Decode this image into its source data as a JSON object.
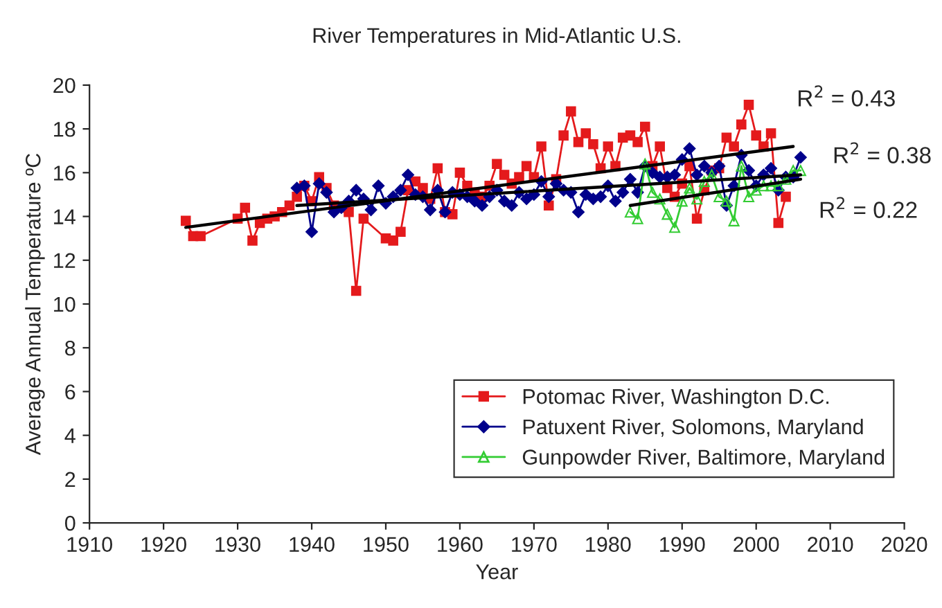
{
  "chart_data": {
    "type": "line",
    "title": "River Temperatures in Mid-Atlantic U.S.",
    "xlabel": "Year",
    "ylabel": "Average Annual Temperature ºC",
    "xlim": [
      1910,
      2020
    ],
    "xticks": [
      1910,
      1920,
      1930,
      1940,
      1950,
      1960,
      1970,
      1980,
      1990,
      2000,
      2010,
      2020
    ],
    "ylim": [
      0,
      20
    ],
    "yticks": [
      0,
      2,
      4,
      6,
      8,
      10,
      12,
      14,
      16,
      18,
      20
    ],
    "grid": false,
    "legend": "lower right",
    "series": [
      {
        "name": "Potomac River, Washington D.C.",
        "color": "#e41a1c",
        "marker": "square",
        "x": [
          1923,
          1924,
          1925,
          1930,
          1931,
          1932,
          1933,
          1934,
          1935,
          1936,
          1937,
          1938,
          1939,
          1940,
          1941,
          1942,
          1943,
          1944,
          1945,
          1946,
          1947,
          1950,
          1951,
          1952,
          1953,
          1954,
          1955,
          1956,
          1957,
          1958,
          1959,
          1960,
          1961,
          1962,
          1963,
          1964,
          1965,
          1966,
          1967,
          1968,
          1969,
          1970,
          1971,
          1972,
          1973,
          1974,
          1975,
          1976,
          1977,
          1978,
          1979,
          1980,
          1981,
          1982,
          1983,
          1984,
          1985,
          1986,
          1987,
          1988,
          1989,
          1990,
          1991,
          1992,
          1993,
          1994,
          1995,
          1996,
          1997,
          1998,
          1999,
          2000,
          2001,
          2002,
          2003,
          2004
        ],
        "values": [
          13.8,
          13.1,
          13.1,
          13.9,
          14.4,
          12.9,
          13.7,
          13.9,
          14.0,
          14.2,
          14.5,
          14.9,
          15.4,
          14.7,
          15.8,
          15.3,
          14.5,
          14.4,
          14.2,
          10.6,
          13.9,
          13.0,
          12.9,
          13.3,
          15.2,
          15.6,
          15.3,
          14.8,
          16.2,
          14.2,
          14.1,
          16.0,
          15.4,
          15.1,
          14.9,
          15.4,
          16.4,
          15.9,
          15.5,
          15.8,
          16.3,
          15.8,
          17.2,
          14.5,
          15.7,
          17.7,
          18.8,
          17.4,
          17.8,
          17.3,
          16.2,
          17.2,
          16.3,
          17.6,
          17.7,
          17.4,
          18.1,
          16.3,
          17.2,
          15.3,
          14.9,
          15.5,
          16.3,
          13.9,
          15.2,
          16.1,
          16.2,
          17.6,
          17.2,
          18.2,
          19.1,
          17.7,
          17.2,
          17.8,
          13.7,
          14.9
        ]
      },
      {
        "name": "Patuxent River, Solomons, Maryland",
        "color": "#00008b",
        "marker": "diamond",
        "x": [
          1938,
          1939,
          1940,
          1941,
          1942,
          1943,
          1944,
          1945,
          1946,
          1947,
          1948,
          1949,
          1950,
          1951,
          1952,
          1953,
          1954,
          1955,
          1956,
          1957,
          1958,
          1959,
          1960,
          1961,
          1962,
          1963,
          1964,
          1965,
          1966,
          1967,
          1968,
          1969,
          1970,
          1971,
          1972,
          1973,
          1974,
          1975,
          1976,
          1977,
          1978,
          1979,
          1980,
          1981,
          1982,
          1983,
          1984,
          1985,
          1986,
          1987,
          1988,
          1989,
          1990,
          1991,
          1992,
          1993,
          1994,
          1995,
          1996,
          1997,
          1998,
          1999,
          2000,
          2001,
          2002,
          2003,
          2004,
          2005,
          2006
        ],
        "values": [
          15.3,
          15.4,
          13.3,
          15.5,
          15.1,
          14.2,
          14.4,
          14.7,
          15.2,
          14.8,
          14.3,
          15.4,
          14.6,
          14.9,
          15.2,
          15.9,
          15.0,
          14.9,
          14.3,
          15.2,
          14.2,
          15.1,
          15.0,
          14.9,
          14.7,
          14.5,
          14.9,
          15.2,
          14.7,
          14.5,
          15.1,
          14.8,
          15.0,
          15.6,
          14.9,
          15.5,
          15.2,
          15.1,
          14.2,
          15.0,
          14.8,
          14.9,
          15.4,
          14.7,
          15.1,
          15.7,
          15.1,
          16.3,
          16.0,
          15.8,
          15.8,
          15.9,
          16.6,
          17.1,
          15.9,
          16.3,
          16.0,
          16.3,
          14.5,
          15.4,
          16.8,
          16.1,
          15.4,
          15.9,
          16.2,
          15.2,
          15.8,
          15.8,
          16.7
        ]
      },
      {
        "name": "Gunpowder River, Baltimore, Maryland",
        "color": "#33cc33",
        "marker": "triangle",
        "x": [
          1983,
          1984,
          1985,
          1986,
          1987,
          1988,
          1989,
          1990,
          1991,
          1992,
          1993,
          1994,
          1995,
          1996,
          1997,
          1998,
          1999,
          2000,
          2001,
          2002,
          2003,
          2004,
          2005,
          2006
        ],
        "values": [
          14.2,
          13.9,
          16.4,
          15.1,
          14.8,
          14.1,
          13.5,
          14.7,
          15.3,
          14.8,
          15.6,
          15.9,
          14.9,
          14.7,
          13.8,
          16.3,
          14.9,
          15.2,
          15.4,
          15.4,
          15.4,
          15.7,
          16.1,
          16.1
        ]
      },
      {
        "type": "line",
        "color": "#000000",
        "marker": "none",
        "x": [
          1923,
          2005
        ],
        "values": [
          13.5,
          17.2
        ]
      },
      {
        "type": "line",
        "color": "#000000",
        "marker": "none",
        "x": [
          1938,
          2006
        ],
        "values": [
          14.5,
          15.9
        ]
      },
      {
        "type": "line",
        "color": "#000000",
        "marker": "none",
        "x": [
          1983,
          2006
        ],
        "values": [
          14.5,
          15.7
        ]
      }
    ],
    "annotations": [
      "R$^{2}$ = 0.43",
      "R$^{2}$ = 0.38",
      "R$^{2}$ = 0.22"
    ]
  }
}
